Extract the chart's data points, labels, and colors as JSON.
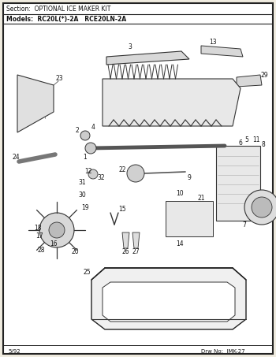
{
  "title_section": "Section:  OPTIONAL ICE MAKER KIT",
  "title_models": "Models:  RC20L(*)-2A   RCE20LN-2A",
  "footer_left": "5/92",
  "footer_right": "Drw No:  IMK-27",
  "page_bg": "#f0ece0",
  "content_bg": "#ffffff",
  "border_color": "#222222",
  "text_color": "#111111",
  "line_color": "#333333",
  "part_color": "#888888",
  "fig_w": 3.5,
  "fig_h": 4.53,
  "dpi": 100
}
